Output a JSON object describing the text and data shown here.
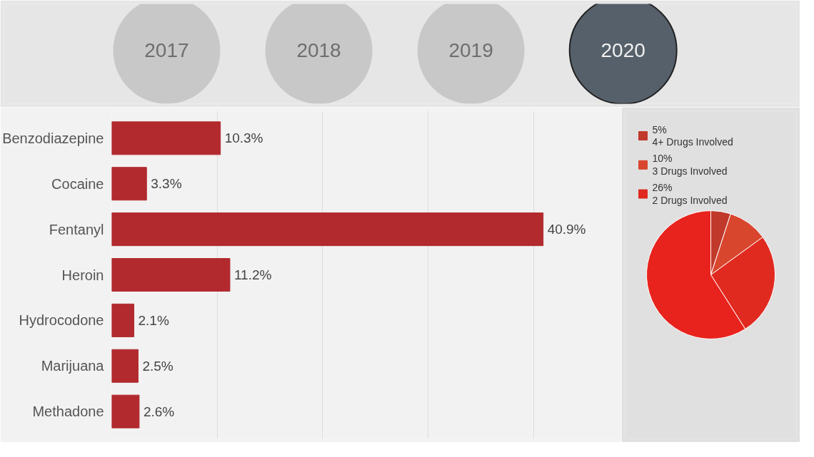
{
  "chart_data": [
    {
      "type": "bar",
      "orientation": "horizontal",
      "annotations": [
        "2017",
        "2018",
        "2019",
        "2020"
      ],
      "categories": [
        "Benzodiazepine",
        "Cocaine",
        "Fentanyl",
        "Heroin",
        "Hydrocodone",
        "Marijuana",
        "Methadone"
      ],
      "values": [
        10.3,
        3.3,
        40.9,
        11.2,
        2.1,
        2.5,
        2.6
      ],
      "value_labels": [
        "10.3%",
        "3.3%",
        "40.9%",
        "11.2%",
        "2.1%",
        "2.5%",
        "2.6%"
      ],
      "color": "#b22a2e",
      "xlim": [
        0,
        48
      ],
      "xticks": [
        {
          "value": 0,
          "label": null
        },
        {
          "value": 10,
          "label": null
        },
        {
          "value": 20,
          "label": null
        },
        {
          "value": 30,
          "label": null
        },
        {
          "value": 40,
          "label": null
        }
      ],
      "tick_labels": "y",
      "grid": "x"
    },
    {
      "type": "pie",
      "categories": [
        "4+ Drugs Involved",
        "3 Drugs Involved",
        "2 Drugs Involved",
        null
      ],
      "values": [
        5,
        10,
        26,
        59
      ],
      "value_labels": [
        "5%",
        "10%",
        "26%",
        null
      ],
      "colors": [
        "#c0392b",
        "#d9462e",
        "#e02a20",
        "#e8231d"
      ],
      "legend": "top"
    }
  ]
}
